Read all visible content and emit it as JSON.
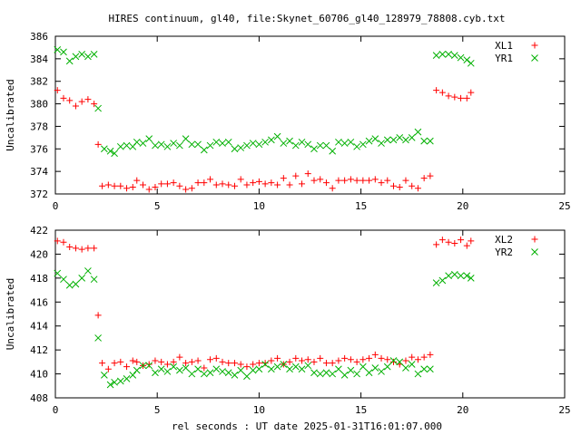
{
  "title": "HIRES continuum, gl40, file:Skynet_60706_gl40_128979_78808.cyb.txt",
  "xlabel": "rel seconds : UT date 2025-01-31T16:01:07.000",
  "colors": {
    "red": "#ff0000",
    "green": "#00b000",
    "axis": "#000000"
  },
  "chart_data": [
    {
      "type": "scatter",
      "ylabel": "Uncalibrated",
      "xlim": [
        0,
        25
      ],
      "ylim": [
        372,
        386
      ],
      "xticks": [
        0,
        5,
        10,
        15,
        20,
        25
      ],
      "yticks": [
        372,
        374,
        376,
        378,
        380,
        382,
        384,
        386
      ],
      "legend_position": "top-right",
      "series": [
        {
          "name": "XL1",
          "marker": "plus",
          "color": "#ff0000",
          "x": [
            0.1,
            0.4,
            0.7,
            1.0,
            1.3,
            1.6,
            1.9,
            2.1,
            2.3,
            2.6,
            2.9,
            3.2,
            3.5,
            3.8,
            4.0,
            4.3,
            4.6,
            4.9,
            5.2,
            5.5,
            5.8,
            6.1,
            6.4,
            6.7,
            7.0,
            7.3,
            7.6,
            7.9,
            8.2,
            8.5,
            8.8,
            9.1,
            9.4,
            9.7,
            10.0,
            10.3,
            10.6,
            10.9,
            11.2,
            11.5,
            11.8,
            12.1,
            12.4,
            12.7,
            13.0,
            13.3,
            13.6,
            13.9,
            14.2,
            14.5,
            14.8,
            15.1,
            15.4,
            15.7,
            16.0,
            16.3,
            16.6,
            16.9,
            17.2,
            17.5,
            17.8,
            18.1,
            18.4,
            18.7,
            19.0,
            19.3,
            19.6,
            19.9,
            20.2,
            20.4
          ],
          "y": [
            381.2,
            380.5,
            380.3,
            379.8,
            380.2,
            380.4,
            380.0,
            376.4,
            372.7,
            372.8,
            372.7,
            372.7,
            372.5,
            372.6,
            373.2,
            372.8,
            372.4,
            372.6,
            372.9,
            372.9,
            373.0,
            372.7,
            372.4,
            372.5,
            373.0,
            373.0,
            373.3,
            372.8,
            372.9,
            372.8,
            372.7,
            373.3,
            372.8,
            373.0,
            373.1,
            372.9,
            373.0,
            372.8,
            373.4,
            372.8,
            373.6,
            372.9,
            373.8,
            373.2,
            373.3,
            373.0,
            372.5,
            373.2,
            373.2,
            373.3,
            373.2,
            373.2,
            373.2,
            373.3,
            373.0,
            373.2,
            372.7,
            372.6,
            373.2,
            372.7,
            372.5,
            373.4,
            373.6,
            381.2,
            381.0,
            380.7,
            380.6,
            380.5,
            380.5,
            381.0
          ]
        },
        {
          "name": "YR1",
          "marker": "cross",
          "color": "#00b000",
          "x": [
            0.1,
            0.4,
            0.7,
            1.0,
            1.3,
            1.6,
            1.9,
            2.1,
            2.4,
            2.7,
            2.9,
            3.2,
            3.5,
            3.8,
            4.0,
            4.3,
            4.6,
            4.9,
            5.2,
            5.5,
            5.8,
            6.1,
            6.4,
            6.7,
            7.0,
            7.3,
            7.6,
            7.9,
            8.2,
            8.5,
            8.8,
            9.1,
            9.4,
            9.7,
            10.0,
            10.3,
            10.6,
            10.9,
            11.2,
            11.5,
            11.8,
            12.1,
            12.4,
            12.7,
            13.0,
            13.3,
            13.6,
            13.9,
            14.2,
            14.5,
            14.8,
            15.1,
            15.4,
            15.7,
            16.0,
            16.3,
            16.6,
            16.9,
            17.2,
            17.5,
            17.8,
            18.1,
            18.4,
            18.7,
            19.0,
            19.3,
            19.6,
            19.9,
            20.2,
            20.4
          ],
          "y": [
            384.8,
            384.6,
            383.8,
            384.2,
            384.4,
            384.2,
            384.4,
            379.6,
            376.0,
            375.8,
            375.6,
            376.2,
            376.3,
            376.2,
            376.6,
            376.5,
            376.9,
            376.3,
            376.4,
            376.2,
            376.5,
            376.3,
            376.9,
            376.4,
            376.4,
            375.9,
            376.3,
            376.6,
            376.5,
            376.6,
            376.0,
            376.1,
            376.3,
            376.5,
            376.4,
            376.6,
            376.8,
            377.1,
            376.5,
            376.7,
            376.3,
            376.6,
            376.4,
            376.0,
            376.3,
            376.3,
            375.8,
            376.6,
            376.5,
            376.6,
            376.2,
            376.4,
            376.7,
            376.9,
            376.5,
            376.8,
            376.8,
            377.0,
            376.8,
            377.0,
            377.5,
            376.7,
            376.7,
            384.3,
            384.4,
            384.4,
            384.3,
            384.1,
            383.9,
            383.6
          ]
        }
      ]
    },
    {
      "type": "scatter",
      "ylabel": "Uncalibrated",
      "xlabel": "rel seconds : UT date 2025-01-31T16:01:07.000",
      "xlim": [
        0,
        25
      ],
      "ylim": [
        408,
        422
      ],
      "xticks": [
        0,
        5,
        10,
        15,
        20,
        25
      ],
      "yticks": [
        408,
        410,
        412,
        414,
        416,
        418,
        420,
        422
      ],
      "legend_position": "top-right",
      "series": [
        {
          "name": "XL2",
          "marker": "plus",
          "color": "#ff0000",
          "x": [
            0.1,
            0.4,
            0.7,
            1.0,
            1.3,
            1.6,
            1.9,
            2.1,
            2.3,
            2.6,
            2.9,
            3.2,
            3.5,
            3.8,
            4.0,
            4.3,
            4.6,
            4.9,
            5.2,
            5.5,
            5.8,
            6.1,
            6.4,
            6.7,
            7.0,
            7.3,
            7.6,
            7.9,
            8.2,
            8.5,
            8.8,
            9.1,
            9.4,
            9.7,
            10.0,
            10.3,
            10.6,
            10.9,
            11.2,
            11.5,
            11.8,
            12.1,
            12.4,
            12.7,
            13.0,
            13.3,
            13.6,
            13.9,
            14.2,
            14.5,
            14.8,
            15.1,
            15.4,
            15.7,
            16.0,
            16.3,
            16.6,
            16.9,
            17.2,
            17.5,
            17.8,
            18.1,
            18.4,
            18.7,
            19.0,
            19.3,
            19.6,
            19.9,
            20.2,
            20.4
          ],
          "y": [
            421.1,
            421.0,
            420.6,
            420.5,
            420.4,
            420.5,
            420.5,
            414.9,
            410.9,
            410.4,
            410.9,
            411.0,
            410.6,
            411.1,
            411.0,
            410.7,
            410.8,
            411.1,
            411.0,
            410.8,
            411.0,
            411.4,
            410.9,
            411.0,
            411.1,
            410.5,
            411.2,
            411.3,
            411.0,
            410.9,
            410.9,
            410.8,
            410.6,
            410.8,
            410.9,
            410.9,
            411.1,
            411.3,
            410.8,
            411.0,
            411.3,
            411.1,
            411.2,
            411.0,
            411.3,
            410.9,
            410.9,
            411.1,
            411.3,
            411.2,
            411.0,
            411.2,
            411.3,
            411.6,
            411.3,
            411.2,
            411.0,
            410.8,
            411.1,
            411.4,
            411.2,
            411.4,
            411.6,
            420.8,
            421.2,
            421.0,
            420.9,
            421.2,
            420.7,
            421.1
          ]
        },
        {
          "name": "YR2",
          "marker": "cross",
          "color": "#00b000",
          "x": [
            0.1,
            0.4,
            0.7,
            1.0,
            1.3,
            1.6,
            1.9,
            2.1,
            2.4,
            2.7,
            2.9,
            3.2,
            3.5,
            3.8,
            4.0,
            4.3,
            4.6,
            4.9,
            5.2,
            5.5,
            5.8,
            6.1,
            6.4,
            6.7,
            7.0,
            7.3,
            7.6,
            7.9,
            8.2,
            8.5,
            8.8,
            9.1,
            9.4,
            9.7,
            10.0,
            10.3,
            10.6,
            10.9,
            11.2,
            11.5,
            11.8,
            12.1,
            12.4,
            12.7,
            13.0,
            13.3,
            13.6,
            13.9,
            14.2,
            14.5,
            14.8,
            15.1,
            15.4,
            15.7,
            16.0,
            16.3,
            16.6,
            16.9,
            17.2,
            17.5,
            17.8,
            18.1,
            18.4,
            18.7,
            19.0,
            19.3,
            19.6,
            19.9,
            20.2,
            20.4
          ],
          "y": [
            418.4,
            417.9,
            417.4,
            417.5,
            418.0,
            418.6,
            417.9,
            413.0,
            409.9,
            409.1,
            409.3,
            409.4,
            409.6,
            409.9,
            410.3,
            410.7,
            410.7,
            410.1,
            410.4,
            410.2,
            410.6,
            410.3,
            410.5,
            410.0,
            410.4,
            410.0,
            410.1,
            410.4,
            410.2,
            410.1,
            409.9,
            410.3,
            409.8,
            410.3,
            410.4,
            410.8,
            410.4,
            410.6,
            410.8,
            410.4,
            410.6,
            410.4,
            410.7,
            410.1,
            410.0,
            410.1,
            410.0,
            410.4,
            409.9,
            410.3,
            410.0,
            410.6,
            410.1,
            410.5,
            410.2,
            410.6,
            411.1,
            411.0,
            410.5,
            410.8,
            410.0,
            410.4,
            410.4,
            417.6,
            417.8,
            418.2,
            418.3,
            418.2,
            418.2,
            418.0
          ]
        }
      ]
    }
  ]
}
